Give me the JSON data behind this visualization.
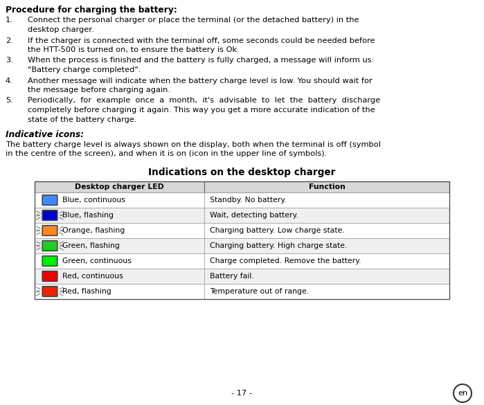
{
  "title": "Procedure for charging the battery",
  "items": [
    [
      "Connect the personal charger or place the terminal (or the detached battery) in the",
      "desktop charger."
    ],
    [
      "If the charger is connected with the terminal off, some seconds could be needed before",
      "the HTT-500 is turned on, to ensure the battery is Ok."
    ],
    [
      "When the process is finished and the battery is fully charged, a message will inform us:",
      "\"Battery charge completed\"."
    ],
    [
      "Another message will indicate when the battery charge level is low. You should wait for",
      "the message before charging again."
    ],
    [
      "Periodically,  for  example  once  a  month,  it's  advisable  to  let  the  battery  discharge",
      "completely before charging it again. This way you get a more accurate indication of the",
      "state of the battery charge."
    ]
  ],
  "section2_title": "Indicative icons:",
  "section2_lines": [
    "The battery charge level is always shown on the display, both when the terminal is off (symbol",
    "in the centre of the screen), and when it is on (icon in the upper line of symbols)."
  ],
  "table_title": "Indications on the desktop charger",
  "table_header": [
    "Desktop charger LED",
    "Function"
  ],
  "table_rows": [
    {
      "color": "#4488ff",
      "flashing": false,
      "led_label": "Blue, continuous",
      "function": "Standby. No battery."
    },
    {
      "color": "#0000cc",
      "flashing": true,
      "led_label": "Blue, flashing",
      "function": "Wait, detecting battery."
    },
    {
      "color": "#ff8822",
      "flashing": true,
      "led_label": "Orange, flashing",
      "function": "Charging battery. Low charge state."
    },
    {
      "color": "#22cc22",
      "flashing": true,
      "led_label": "Green, flashing",
      "function": "Charging battery. High charge state."
    },
    {
      "color": "#00ee00",
      "flashing": false,
      "led_label": "Green, continuous",
      "function": "Charge completed. Remove the battery."
    },
    {
      "color": "#ee0000",
      "flashing": false,
      "led_label": "Red, continuous",
      "function": "Battery fail."
    },
    {
      "color": "#ee2200",
      "flashing": true,
      "led_label": "Red, flashing",
      "function": "Temperature out of range."
    }
  ],
  "page_number": "- 17 -",
  "lang_badge": "en",
  "bg_color": "#ffffff",
  "text_color": "#000000"
}
